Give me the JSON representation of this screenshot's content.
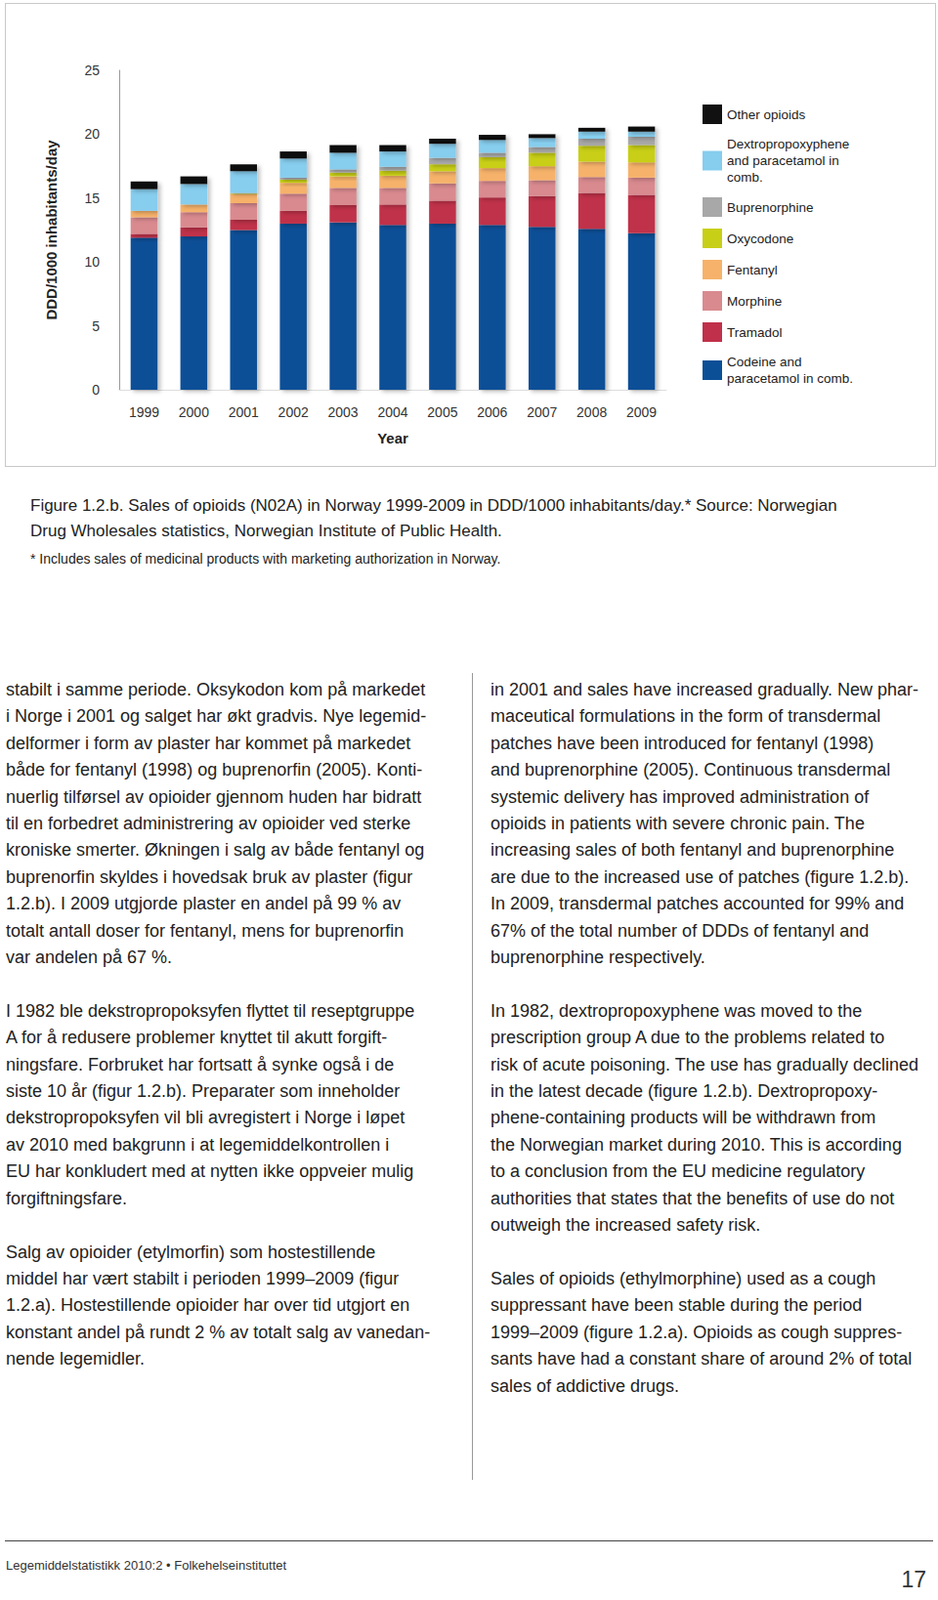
{
  "chart_data": {
    "type": "bar",
    "stacked": true,
    "categories": [
      "1999",
      "2000",
      "2001",
      "2002",
      "2003",
      "2004",
      "2005",
      "2006",
      "2007",
      "2008",
      "2009"
    ],
    "xlabel": "Year",
    "ylabel": "DDD/1000 inhabitants/day",
    "ylim": [
      0,
      25
    ],
    "yticks": [
      0,
      5,
      10,
      15,
      20,
      25
    ],
    "grid": false,
    "legend": "right",
    "series": [
      {
        "name": "Codeine and paracetamol in comb.",
        "color": "#0b4f97",
        "values": [
          11.9,
          12.0,
          12.5,
          13.0,
          13.1,
          12.9,
          13.0,
          12.9,
          12.75,
          12.6,
          12.25
        ]
      },
      {
        "name": "Tramadol",
        "color": "#c0304a",
        "values": [
          0.3,
          0.7,
          0.8,
          1.0,
          1.35,
          1.6,
          1.8,
          2.15,
          2.4,
          2.8,
          3.0
        ]
      },
      {
        "name": "Morphine",
        "color": "#d98a8f",
        "values": [
          1.3,
          1.2,
          1.3,
          1.35,
          1.35,
          1.3,
          1.35,
          1.3,
          1.25,
          1.25,
          1.35
        ]
      },
      {
        "name": "Fentanyl",
        "color": "#f6b26b",
        "values": [
          0.5,
          0.6,
          0.7,
          0.85,
          0.9,
          0.95,
          0.95,
          1.0,
          1.1,
          1.2,
          1.2
        ]
      },
      {
        "name": "Oxycodone",
        "color": "#c8cf17",
        "values": [
          0,
          0,
          0.05,
          0.25,
          0.3,
          0.4,
          0.55,
          0.85,
          1.05,
          1.25,
          1.35
        ]
      },
      {
        "name": "Buprenorphine",
        "color": "#a8a8a8",
        "values": [
          0,
          0,
          0.05,
          0.15,
          0.25,
          0.3,
          0.5,
          0.35,
          0.45,
          0.55,
          0.65
        ]
      },
      {
        "name": "Dextropropoxyphene and paracetamol in comb.",
        "color": "#86cdee",
        "values": [
          1.7,
          1.6,
          1.7,
          1.5,
          1.3,
          1.2,
          1.1,
          1.0,
          0.7,
          0.55,
          0.4
        ]
      },
      {
        "name": "Other opioids",
        "color": "#111111",
        "values": [
          0.6,
          0.6,
          0.55,
          0.55,
          0.6,
          0.5,
          0.4,
          0.4,
          0.3,
          0.3,
          0.4
        ]
      }
    ]
  },
  "caption": {
    "lines": [
      "Figure 1.2.b.  Sales of opioids (N02A) in Norway 1999-2009 in DDD/1000 inhabitants/day.* Source: Norwegian",
      "Drug Wholesales statistics, Norwegian Institute of Public Health."
    ],
    "footnote": "* Includes sales of medicinal products with marketing authorization in Norway."
  },
  "columns": {
    "left": [
      [
        "stabilt i samme periode. Oksykodon kom på markedet",
        "i Norge i 2001 og salget har økt gradvis. Nye legemid-",
        "delformer i form av plaster har kommet på markedet",
        "både for fentanyl (1998) og buprenorfin (2005). Konti-",
        "nuerlig tilførsel av opioider gjennom huden har bidratt",
        "til en forbedret administrering av opioider ved sterke",
        "kroniske smerter. Økningen i salg av både fentanyl og",
        "buprenorfin skyldes i hovedsak bruk av plaster (figur",
        "1.2.b).  I 2009 utgjorde plaster en andel på 99 % av",
        "totalt antall doser for fentanyl, mens for buprenorfin",
        "var andelen på 67 %."
      ],
      [
        "I 1982 ble dekstropropoksyfen flyttet til reseptgruppe",
        "A for å redusere problemer knyttet til akutt forgift-",
        "ningsfare. Forbruket har fortsatt å synke også i de",
        "siste 10 år (figur 1.2.b). Preparater som inneholder",
        "dekstropropoksyfen vil bli avregistert i Norge i løpet",
        "av 2010 med bakgrunn i at legemiddelkontrollen i",
        "EU har konkludert med at nytten ikke oppveier mulig",
        "forgiftningsfare."
      ],
      [
        "Salg av opioider (etylmorfin) som hostestillende",
        "middel har vært stabilt i perioden 1999–2009 (figur",
        "1.2.a). Hostestillende opioider har over tid utgjort en",
        "konstant andel på rundt 2 % av totalt salg av vanedan-",
        "nende legemidler."
      ]
    ],
    "right": [
      [
        "in 2001 and sales have increased gradually. New phar-",
        "maceutical formulations in the form of transdermal",
        "patches have been introduced for fentanyl (1998)",
        "and buprenorphine (2005). Continuous transdermal",
        "systemic delivery has improved administration of",
        "opioids in patients with severe chronic pain. The",
        "increasing sales of both fentanyl and buprenorphine",
        "are due to the increased use of patches (figure 1.2.b).",
        "In 2009, transdermal patches accounted for 99% and",
        "67% of the total number of DDDs of fentanyl and",
        "buprenorphine respectively."
      ],
      [
        "In 1982, dextropropoxyphene was moved to the",
        "prescription group A due to the problems related to",
        "risk of acute poisoning. The use has gradually declined",
        "in the latest decade (figure 1.2.b). Dextropropoxy-",
        "phene-containing products will be withdrawn from",
        "the Norwegian market during 2010. This is according",
        "to a conclusion from the EU medicine regulatory",
        "authorities that states that the benefits of use do not",
        "outweigh the increased safety risk."
      ],
      [
        "Sales of opioids (ethylmorphine) used as a cough",
        "suppressant have been stable during the period",
        "1999–2009 (figure 1.2.a). Opioids as cough suppres-",
        "sants have had a constant share of around 2% of total",
        "sales of addictive drugs."
      ]
    ]
  },
  "footer": {
    "text": "Legemiddelstatistikk 2010:2 • Folkehelseinstituttet",
    "page": "17"
  }
}
